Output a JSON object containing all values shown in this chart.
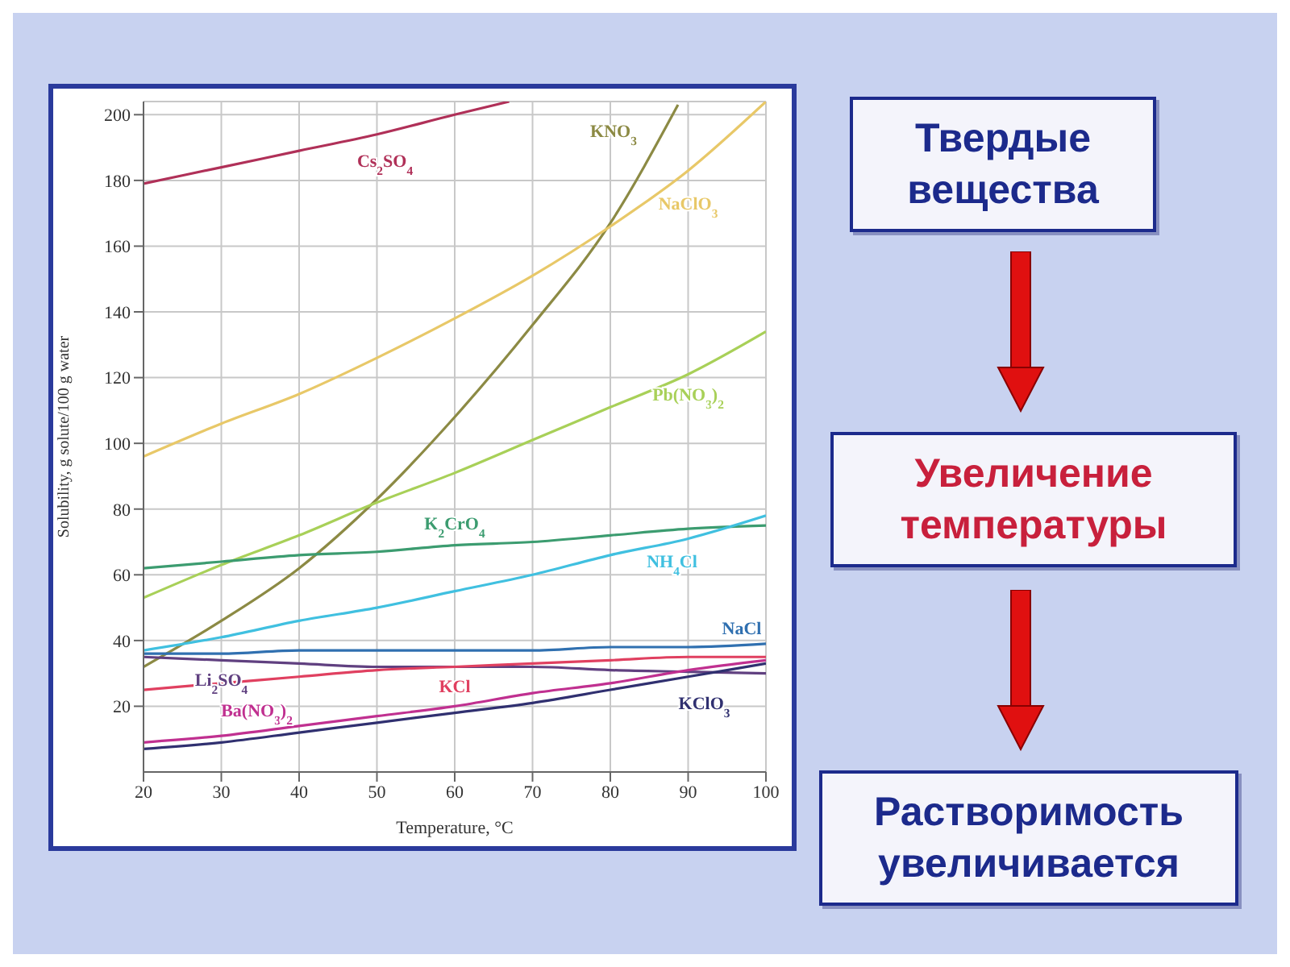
{
  "chart_data": {
    "type": "line",
    "xlabel": "Temperature, °C",
    "ylabel": "Solubility, g solute/100 g water",
    "x": [
      20,
      30,
      40,
      50,
      60,
      70,
      80,
      90,
      100
    ],
    "xlim": [
      20,
      100
    ],
    "xticks": [
      20,
      30,
      40,
      50,
      60,
      70,
      80,
      90,
      100
    ],
    "ylim": [
      0,
      204
    ],
    "yticks": [
      20,
      40,
      60,
      80,
      100,
      120,
      140,
      160,
      180,
      200
    ],
    "grid": true,
    "legend": false,
    "marker": "none",
    "line_style": "solid",
    "series": [
      {
        "name": "Cs$_{2}$SO$_{4}$",
        "color": "#b03058",
        "x": [
          20,
          30,
          40,
          50,
          60,
          67
        ],
        "values": [
          179,
          184,
          189,
          194,
          200,
          204
        ]
      },
      {
        "name": "KNO$_{3}$",
        "color": "#8c8a44",
        "x": [
          20,
          30,
          40,
          50,
          60,
          70,
          80,
          88.7
        ],
        "values": [
          32,
          46,
          62,
          83,
          108,
          136,
          167,
          203
        ]
      },
      {
        "name": "NaClO$_{3}$",
        "color": "#e8c868",
        "values": [
          96,
          106,
          115,
          126,
          138,
          151,
          166,
          183,
          204
        ]
      },
      {
        "name": "Pb(NO$_{3}$)$_{2}$",
        "color": "#a8d058",
        "values": [
          53,
          63,
          72,
          82,
          91,
          101,
          111,
          121,
          134
        ]
      },
      {
        "name": "K$_{2}$CrO$_{4}$",
        "color": "#3c9c70",
        "values": [
          62,
          64,
          66,
          67,
          69,
          70,
          72,
          74,
          75
        ]
      },
      {
        "name": "NH$_{4}$Cl",
        "color": "#40c0e0",
        "values": [
          37,
          41,
          46,
          50,
          55,
          60,
          66,
          71,
          78
        ]
      },
      {
        "name": "NaCl",
        "color": "#3070b0",
        "values": [
          36,
          36,
          37,
          37,
          37,
          37,
          38,
          38,
          39
        ]
      },
      {
        "name": "Li$_{2}$SO$_{4}$",
        "color": "#604080",
        "values": [
          35,
          34,
          33,
          32,
          32,
          32,
          31,
          30.5,
          30
        ]
      },
      {
        "name": "KCl",
        "color": "#e04060",
        "values": [
          25,
          27,
          29,
          31,
          32,
          33,
          34,
          35,
          35
        ]
      },
      {
        "name": "KClO$_{3}$",
        "color": "#303070",
        "values": [
          7,
          9,
          12,
          15,
          18,
          21,
          25,
          29,
          33
        ]
      },
      {
        "name": "Ba(NO$_{3}$)$_{2}$",
        "color": "#c03090",
        "values": [
          9,
          11,
          14,
          17,
          20,
          24,
          27,
          31,
          34
        ]
      }
    ],
    "annotations": [
      "Твердые вещества",
      "Увеличение температуры",
      "Растворимость увеличивается"
    ]
  }
}
